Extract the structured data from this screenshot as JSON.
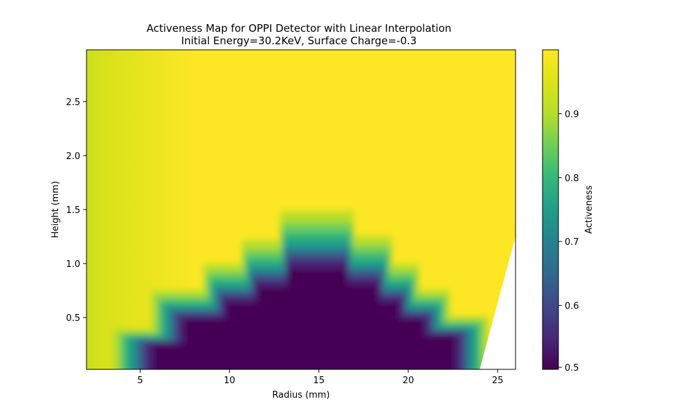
{
  "chart_data": {
    "type": "heatmap",
    "title": "Activeness Map for OPPI Detector with Linear Interpolation",
    "subtitle": "Initial Energy=30.2KeV, Surface Charge=-0.3",
    "xlabel": "Radius (mm)",
    "ylabel": "Height (mm)",
    "xlim": [
      2,
      26
    ],
    "ylim": [
      0.02,
      2.98
    ],
    "x_ticks": [
      5,
      10,
      15,
      20,
      25
    ],
    "x_tick_labels": [
      "5",
      "10",
      "15",
      "20",
      "25"
    ],
    "y_ticks": [
      0.5,
      1.0,
      1.5,
      2.0,
      2.5
    ],
    "y_tick_labels": [
      "0.5",
      "1.0",
      "1.5",
      "2.0",
      "2.5"
    ],
    "grid": false,
    "colormap": "viridis",
    "colorbar": {
      "label": "Activeness",
      "range": [
        0.5,
        1.0
      ],
      "ticks": [
        0.5,
        0.6,
        0.7,
        0.8,
        0.9
      ],
      "tick_labels": [
        "0.5",
        "0.6",
        "0.7",
        "0.8",
        "0.9"
      ]
    },
    "low_region_boundary": [
      {
        "r": 4.3,
        "h": 0.02
      },
      {
        "r": 4.3,
        "h": 0.32
      },
      {
        "r": 6.3,
        "h": 0.32
      },
      {
        "r": 6.3,
        "h": 0.62
      },
      {
        "r": 9.0,
        "h": 0.62
      },
      {
        "r": 9.0,
        "h": 0.82
      },
      {
        "r": 11.0,
        "h": 0.82
      },
      {
        "r": 11.0,
        "h": 1.0
      },
      {
        "r": 13.0,
        "h": 1.0
      },
      {
        "r": 13.0,
        "h": 1.22
      },
      {
        "r": 16.8,
        "h": 1.22
      },
      {
        "r": 16.8,
        "h": 1.03
      },
      {
        "r": 18.8,
        "h": 1.03
      },
      {
        "r": 18.8,
        "h": 0.82
      },
      {
        "r": 20.2,
        "h": 0.82
      },
      {
        "r": 20.2,
        "h": 0.62
      },
      {
        "r": 21.8,
        "h": 0.62
      },
      {
        "r": 21.8,
        "h": 0.42
      },
      {
        "r": 23.8,
        "h": 0.42
      },
      {
        "r": 23.8,
        "h": 0.02
      }
    ],
    "outer_edge": [
      {
        "r": 24.0,
        "h": 0.02
      },
      {
        "r": 26.0,
        "h": 1.25
      }
    ]
  }
}
